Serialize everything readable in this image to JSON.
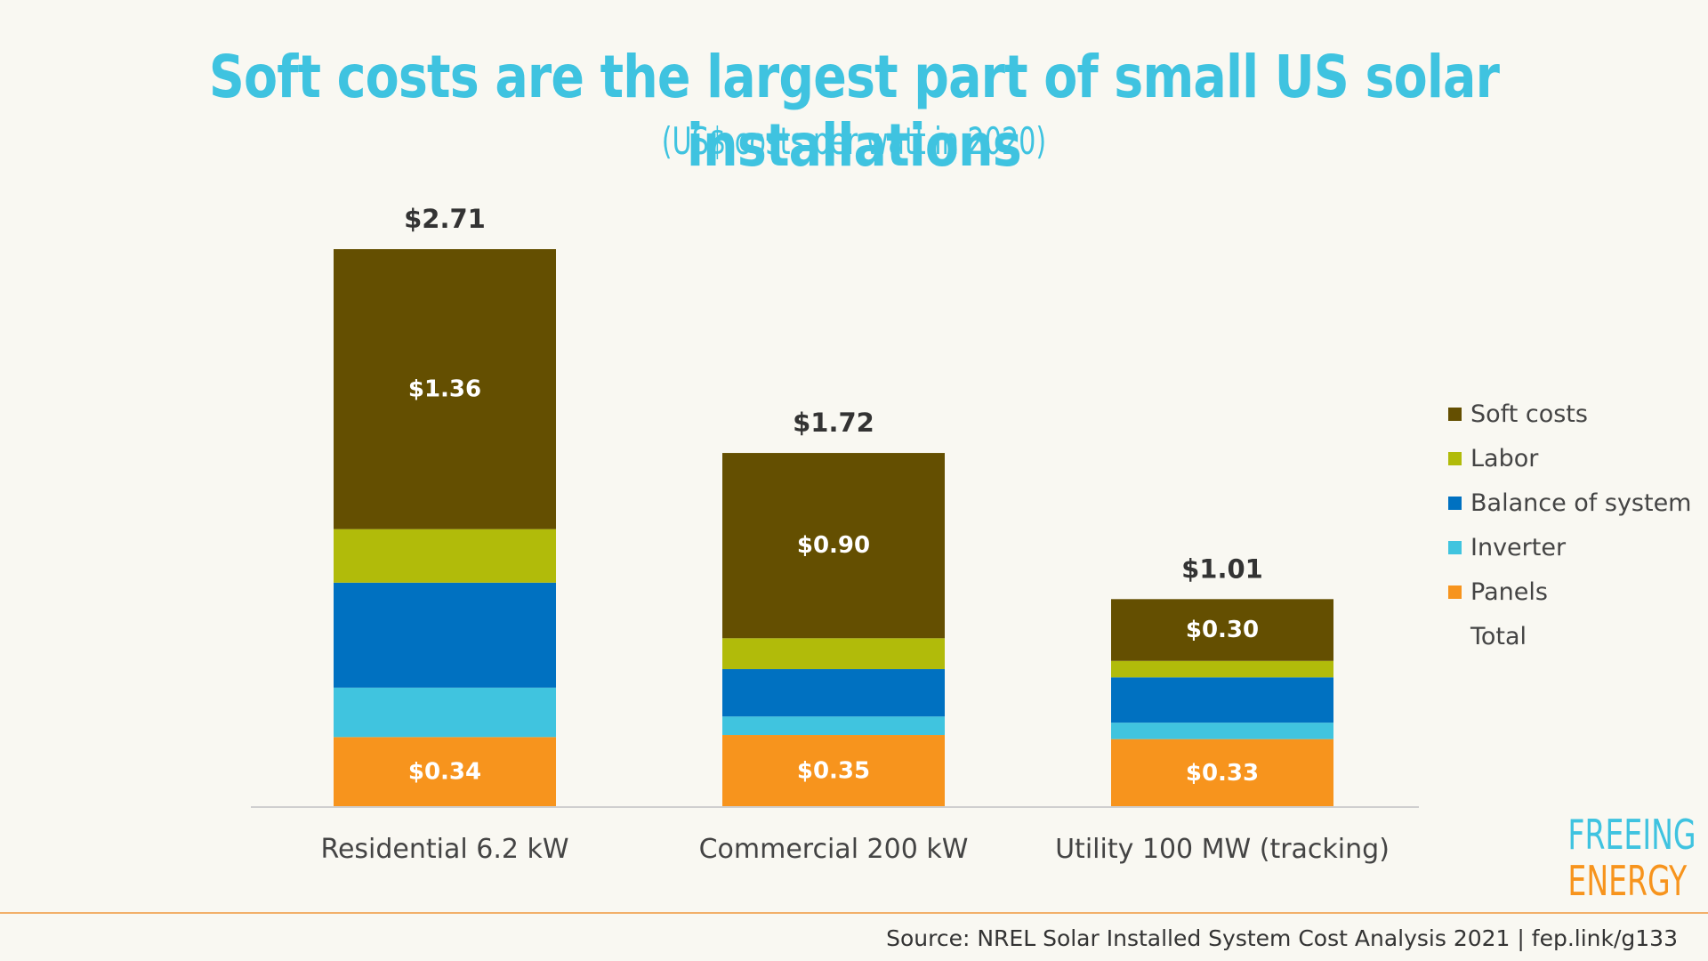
{
  "chart_data": {
    "type": "bar",
    "stacked": true,
    "title": "Soft costs are the largest part of small US solar installations",
    "subtitle": "(US$ costs per watt in 2020)",
    "categories": [
      "Residential 6.2 kW",
      "Commercial 200 kW",
      "Utility 100 MW (tracking)"
    ],
    "series": [
      {
        "name": "Panels",
        "color": "#f7941d",
        "values": [
          0.34,
          0.35,
          0.33
        ],
        "labels": [
          "$0.34",
          "$0.35",
          "$0.33"
        ]
      },
      {
        "name": "Inverter",
        "color": "#40c4df",
        "values": [
          0.24,
          0.09,
          0.08
        ],
        "labels": [
          "",
          "",
          ""
        ]
      },
      {
        "name": "Balance of system",
        "color": "#0071c1",
        "values": [
          0.51,
          0.23,
          0.22
        ],
        "labels": [
          "",
          "",
          ""
        ]
      },
      {
        "name": "Labor",
        "color": "#b1bb0a",
        "values": [
          0.26,
          0.15,
          0.08
        ],
        "labels": [
          "",
          "",
          ""
        ]
      },
      {
        "name": "Soft costs",
        "color": "#644f01",
        "values": [
          1.36,
          0.9,
          0.3
        ],
        "labels": [
          "$1.36",
          "$0.90",
          "$0.30"
        ]
      }
    ],
    "totals": [
      2.71,
      1.72,
      1.01
    ],
    "total_labels": [
      "$2.71",
      "$1.72",
      "$1.01"
    ],
    "legend": [
      "Soft costs",
      "Labor",
      "Balance of system",
      "Inverter",
      "Panels",
      "Total"
    ],
    "legend_position": "right",
    "ylim": [
      0,
      2.71
    ],
    "grid": false
  },
  "logo": {
    "line1": "FREEING",
    "line2": "ENERGY"
  },
  "source": "Source: NREL Solar Installed System Cost Analysis 2021 | fep.link/g133"
}
